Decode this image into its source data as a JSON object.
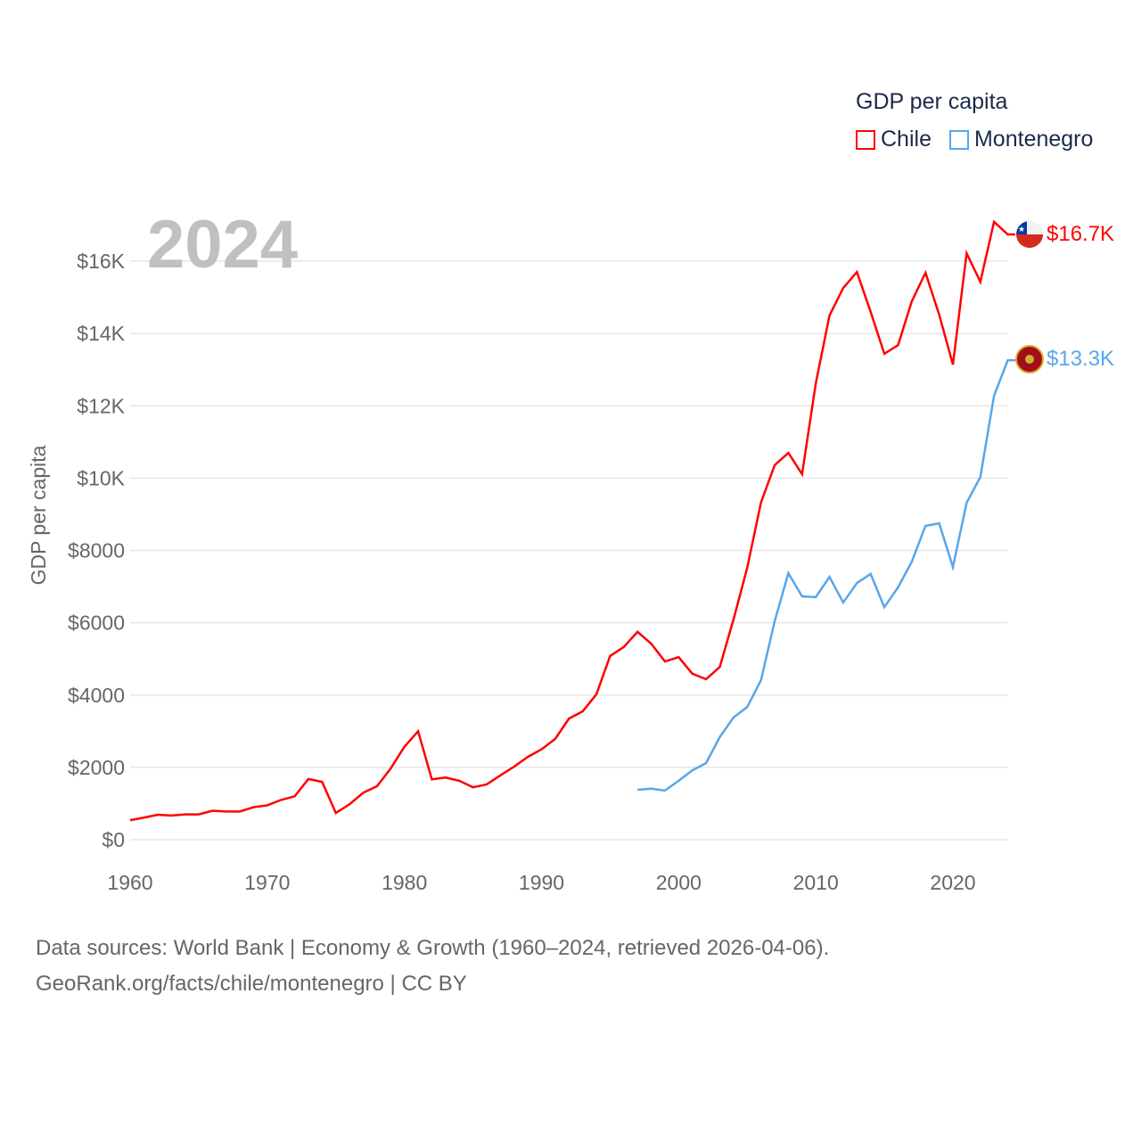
{
  "legend": {
    "title": "GDP per capita",
    "items": [
      {
        "name": "Chile",
        "color": "#ff0000"
      },
      {
        "name": "Montenegro",
        "color": "#5aa5eb"
      }
    ]
  },
  "year_label": "2024",
  "end_labels": {
    "chile": "$16.7K",
    "montenegro": "$13.3K"
  },
  "footer": {
    "line1": "Data sources: World Bank | Economy & Growth (1960–2024, retrieved 2026-04-06).",
    "line2": "GeoRank.org/facts/chile/montenegro | CC BY"
  },
  "chart_data": {
    "type": "line",
    "title": "GDP per capita",
    "xlabel": "",
    "ylabel": "GDP per capita",
    "xlim": [
      1960,
      2024
    ],
    "ylim": [
      0,
      17000
    ],
    "x_ticks": [
      1960,
      1970,
      1980,
      1990,
      2000,
      2010,
      2020
    ],
    "y_ticks": [
      {
        "v": 0,
        "label": "$0"
      },
      {
        "v": 2000,
        "label": "$2000"
      },
      {
        "v": 4000,
        "label": "$4000"
      },
      {
        "v": 6000,
        "label": "$6000"
      },
      {
        "v": 8000,
        "label": "$8000"
      },
      {
        "v": 10000,
        "label": "$10K"
      },
      {
        "v": 12000,
        "label": "$12K"
      },
      {
        "v": 14000,
        "label": "$14K"
      },
      {
        "v": 16000,
        "label": "$16K"
      }
    ],
    "grid": true,
    "legend_position": "top-right",
    "series": [
      {
        "name": "Chile",
        "color": "#ff0000",
        "start_year": 1960,
        "values": [
          540,
          610,
          690,
          670,
          700,
          700,
          800,
          780,
          780,
          900,
          950,
          1100,
          1200,
          1680,
          1600,
          740,
          980,
          1300,
          1480,
          1970,
          2570,
          3000,
          1670,
          1720,
          1630,
          1450,
          1530,
          1780,
          2020,
          2290,
          2500,
          2790,
          3350,
          3550,
          4020,
          5080,
          5330,
          5750,
          5420,
          4930,
          5050,
          4590,
          4440,
          4780,
          6090,
          7520,
          9320,
          10360,
          10700,
          10110,
          12620,
          14500,
          15260,
          15700,
          14600,
          13440,
          13680,
          14890,
          15680,
          14520,
          13140,
          16220,
          15430,
          17090,
          16740
        ]
      },
      {
        "name": "Montenegro",
        "color": "#5aa5eb",
        "start_year": 1997,
        "values": [
          1380,
          1410,
          1360,
          1630,
          1920,
          2120,
          2840,
          3380,
          3670,
          4410,
          6040,
          7370,
          6730,
          6710,
          7270,
          6560,
          7100,
          7350,
          6430,
          6980,
          7690,
          8680,
          8750,
          7540,
          9320,
          10030,
          12280,
          13260
        ]
      }
    ]
  }
}
